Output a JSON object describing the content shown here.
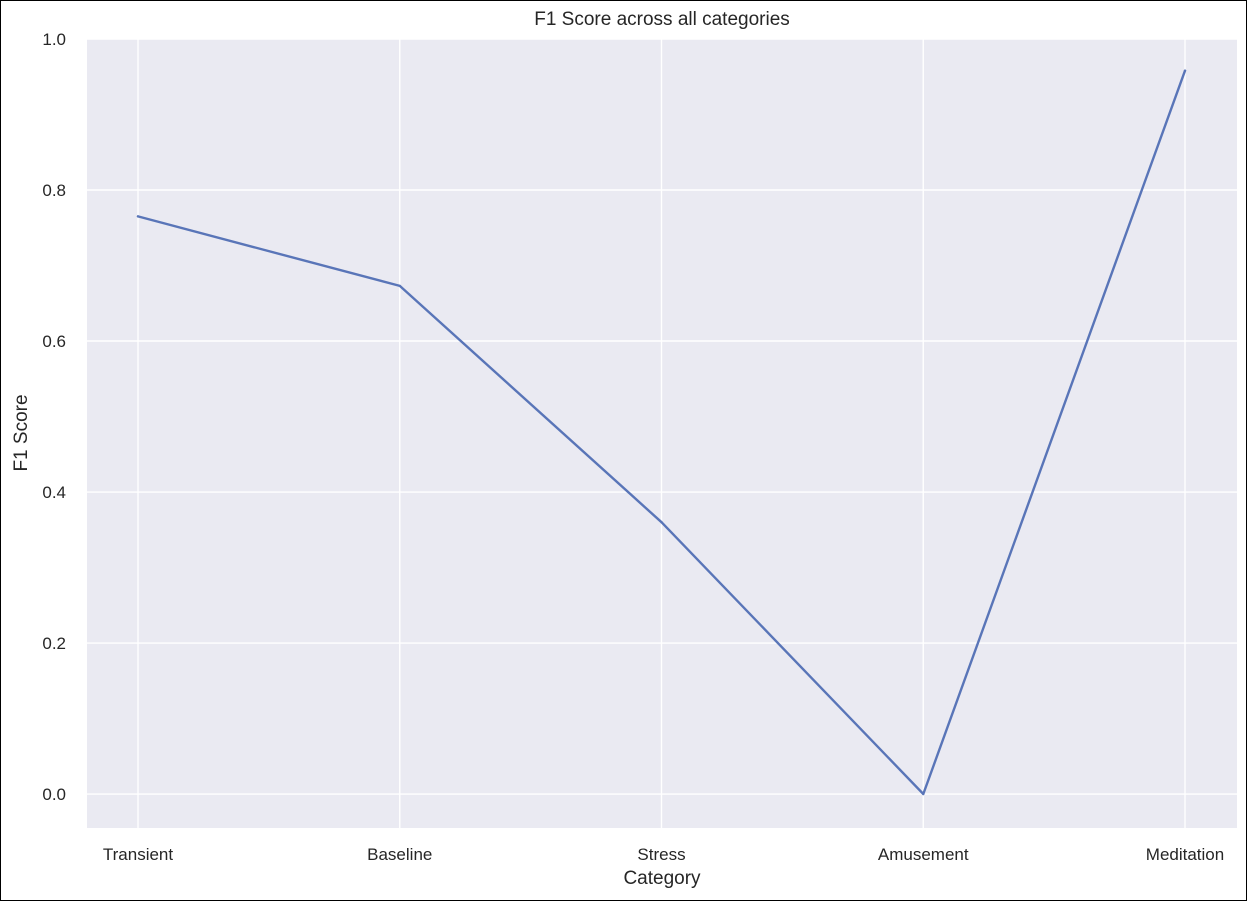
{
  "chart_data": {
    "type": "line",
    "title": "F1 Score across all categories",
    "xlabel": "Category",
    "ylabel": "F1 Score",
    "categories": [
      "Transient",
      "Baseline",
      "Stress",
      "Amusement",
      "Meditation"
    ],
    "series": [
      {
        "values": [
          0.765,
          0.673,
          0.36,
          0.0,
          0.958
        ]
      }
    ],
    "ylim": [
      -0.045,
      1.0
    ],
    "yticks": [
      0.0,
      0.2,
      0.4,
      0.6,
      0.8,
      1.0
    ],
    "ytick_labels": [
      "0.0",
      "0.2",
      "0.4",
      "0.6",
      "0.8",
      "1.0"
    ],
    "grid": true,
    "legend": "none"
  },
  "colors": {
    "plot_background": "#EAEAF2",
    "grid": "#FFFFFF",
    "line": "#5975B8",
    "text": "#262626"
  }
}
